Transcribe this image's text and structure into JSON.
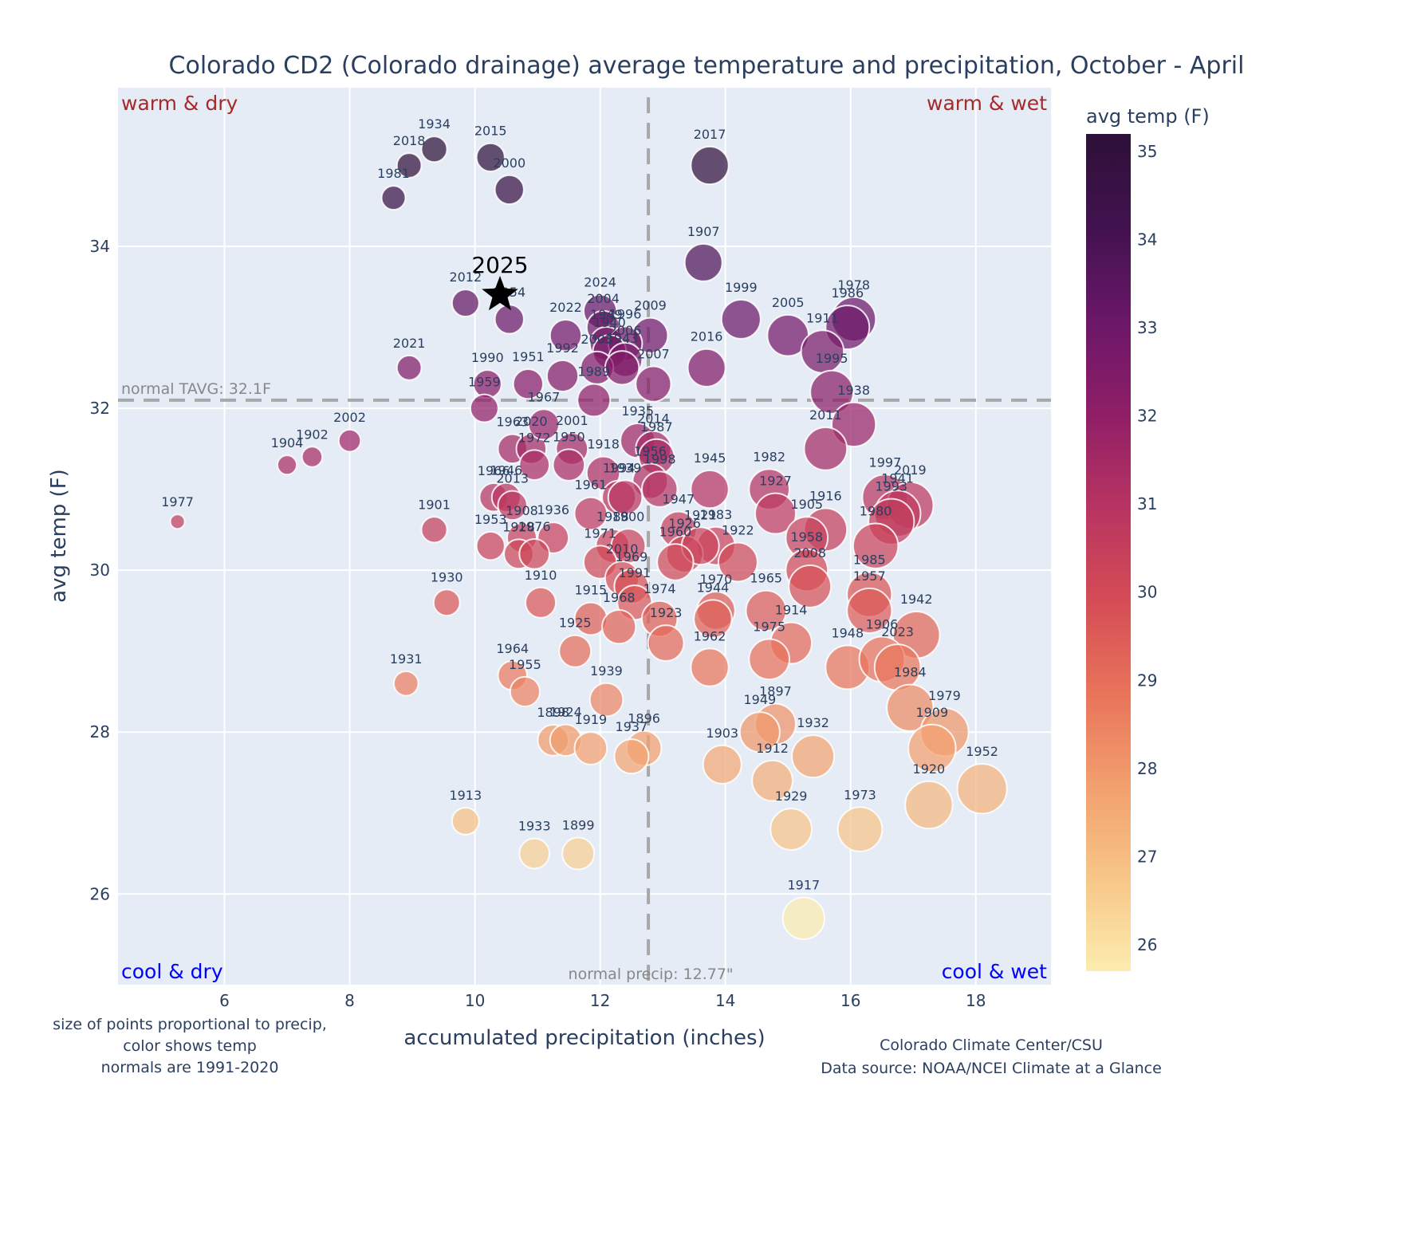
{
  "chart_data": {
    "type": "scatter",
    "title": "Colorado CD2 (Colorado drainage) average temperature and precipitation, October - April",
    "xlabel": "accumulated precipitation (inches)",
    "ylabel": "avg temp (F)",
    "xlim": [
      4.3,
      19.2
    ],
    "ylim": [
      24.88,
      35.96
    ],
    "xticks": [
      6,
      8,
      10,
      12,
      14,
      16,
      18
    ],
    "yticks": [
      26,
      28,
      30,
      32,
      34
    ],
    "grid": true,
    "colorbar": {
      "title": "avg temp (F)",
      "colorscale": "magma_r",
      "range": [
        25.7,
        35.2
      ],
      "ticks": [
        26,
        27,
        28,
        29,
        30,
        31,
        32,
        33,
        34,
        35
      ],
      "stops": [
        "#fcecaf",
        "#f7c688",
        "#f29f6e",
        "#e8735a",
        "#d44c55",
        "#b73462",
        "#8f1e67",
        "#6a1768",
        "#42124f",
        "#2d1038"
      ]
    },
    "marker_size_note": "size proportional to precip",
    "normals": {
      "temp": 32.1,
      "precip": 12.77,
      "temp_label": "normal TAVG: 32.1F",
      "precip_label": "normal precip: 12.77\""
    },
    "quadrant_labels": {
      "top_left": "warm & dry",
      "top_right": "warm & wet",
      "bottom_left": "cool & dry",
      "bottom_right": "cool & wet"
    },
    "highlight": {
      "label": "2025",
      "x": 10.4,
      "y": 33.4,
      "marker": "star"
    },
    "notes": {
      "left": [
        "size of points proportional to precip,",
        "color shows temp",
        "normals are 1991-2020"
      ],
      "right": [
        "Colorado Climate Center/CSU",
        "Data source: NOAA/NCEI Climate at a Glance"
      ]
    },
    "points": [
      {
        "year": "1934",
        "x": 9.35,
        "y": 35.2
      },
      {
        "year": "2015",
        "x": 10.25,
        "y": 35.1
      },
      {
        "year": "2018",
        "x": 8.95,
        "y": 35.0
      },
      {
        "year": "2017",
        "x": 13.75,
        "y": 35.0
      },
      {
        "year": "2000",
        "x": 10.55,
        "y": 34.7
      },
      {
        "year": "1981",
        "x": 8.7,
        "y": 34.6
      },
      {
        "year": "1907",
        "x": 13.65,
        "y": 33.8
      },
      {
        "year": "2012",
        "x": 9.85,
        "y": 33.3
      },
      {
        "year": "1954",
        "x": 10.55,
        "y": 33.1
      },
      {
        "year": "2024",
        "x": 12.0,
        "y": 33.2
      },
      {
        "year": "2004",
        "x": 12.05,
        "y": 33.0
      },
      {
        "year": "2022",
        "x": 11.45,
        "y": 32.9
      },
      {
        "year": "2009",
        "x": 12.8,
        "y": 32.9
      },
      {
        "year": "1999",
        "x": 14.25,
        "y": 33.1
      },
      {
        "year": "2005",
        "x": 15.0,
        "y": 32.9
      },
      {
        "year": "1978",
        "x": 16.05,
        "y": 33.1
      },
      {
        "year": "1986",
        "x": 15.95,
        "y": 33.0
      },
      {
        "year": "1911",
        "x": 15.55,
        "y": 32.7
      },
      {
        "year": "1949",
        "x": 12.1,
        "y": 32.8
      },
      {
        "year": "1996",
        "x": 12.4,
        "y": 32.8
      },
      {
        "year": "1940",
        "x": 12.15,
        "y": 32.7
      },
      {
        "year": "2006",
        "x": 12.4,
        "y": 32.6
      },
      {
        "year": "2003",
        "x": 11.95,
        "y": 32.5
      },
      {
        "year": "1943",
        "x": 12.35,
        "y": 32.5
      },
      {
        "year": "2016",
        "x": 13.7,
        "y": 32.5
      },
      {
        "year": "2021",
        "x": 8.95,
        "y": 32.5
      },
      {
        "year": "1992",
        "x": 11.4,
        "y": 32.4
      },
      {
        "year": "1995",
        "x": 15.7,
        "y": 32.2
      },
      {
        "year": "1990",
        "x": 10.2,
        "y": 32.3
      },
      {
        "year": "1951",
        "x": 10.85,
        "y": 32.3
      },
      {
        "year": "2007",
        "x": 12.85,
        "y": 32.3
      },
      {
        "year": "1959",
        "x": 10.15,
        "y": 32.0
      },
      {
        "year": "1989",
        "x": 11.9,
        "y": 32.1
      },
      {
        "year": "1938",
        "x": 16.05,
        "y": 31.8
      },
      {
        "year": "2011",
        "x": 15.6,
        "y": 31.5
      },
      {
        "year": "2002",
        "x": 8.0,
        "y": 31.6
      },
      {
        "year": "1902",
        "x": 7.4,
        "y": 31.4
      },
      {
        "year": "1904",
        "x": 7.0,
        "y": 31.3
      },
      {
        "year": "1963",
        "x": 10.6,
        "y": 31.5
      },
      {
        "year": "2020",
        "x": 10.9,
        "y": 31.5
      },
      {
        "year": "1967",
        "x": 11.1,
        "y": 31.8
      },
      {
        "year": "1972",
        "x": 10.95,
        "y": 31.3
      },
      {
        "year": "2001",
        "x": 11.55,
        "y": 31.5
      },
      {
        "year": "1950",
        "x": 11.5,
        "y": 31.3
      },
      {
        "year": "1935",
        "x": 12.6,
        "y": 31.6
      },
      {
        "year": "2014",
        "x": 12.85,
        "y": 31.5
      },
      {
        "year": "1987",
        "x": 12.9,
        "y": 31.4
      },
      {
        "year": "1956",
        "x": 12.8,
        "y": 31.1
      },
      {
        "year": "1998",
        "x": 12.95,
        "y": 31.0
      },
      {
        "year": "1945",
        "x": 13.75,
        "y": 31.0
      },
      {
        "year": "1982",
        "x": 14.7,
        "y": 31.0
      },
      {
        "year": "1927",
        "x": 14.8,
        "y": 30.7
      },
      {
        "year": "1997",
        "x": 16.55,
        "y": 30.9
      },
      {
        "year": "2019",
        "x": 16.95,
        "y": 30.8
      },
      {
        "year": "1941",
        "x": 16.75,
        "y": 30.7
      },
      {
        "year": "1993",
        "x": 16.65,
        "y": 30.6
      },
      {
        "year": "1980",
        "x": 16.4,
        "y": 30.3
      },
      {
        "year": "1916",
        "x": 15.6,
        "y": 30.5
      },
      {
        "year": "1905",
        "x": 15.3,
        "y": 30.4
      },
      {
        "year": "1958",
        "x": 15.3,
        "y": 30.0
      },
      {
        "year": "2008",
        "x": 15.35,
        "y": 29.8
      },
      {
        "year": "1985",
        "x": 16.3,
        "y": 29.7
      },
      {
        "year": "1966",
        "x": 10.3,
        "y": 30.9
      },
      {
        "year": "1946",
        "x": 10.5,
        "y": 30.9
      },
      {
        "year": "2013",
        "x": 10.6,
        "y": 30.8
      },
      {
        "year": "1901",
        "x": 9.35,
        "y": 30.5
      },
      {
        "year": "1977",
        "x": 5.25,
        "y": 30.6
      },
      {
        "year": "1953",
        "x": 10.25,
        "y": 30.3
      },
      {
        "year": "1908",
        "x": 10.75,
        "y": 30.4
      },
      {
        "year": "1936",
        "x": 11.25,
        "y": 30.4
      },
      {
        "year": "1928",
        "x": 10.7,
        "y": 30.2
      },
      {
        "year": "1976",
        "x": 10.95,
        "y": 30.2
      },
      {
        "year": "1918",
        "x": 12.05,
        "y": 31.2
      },
      {
        "year": "1994",
        "x": 12.3,
        "y": 30.9
      },
      {
        "year": "1961",
        "x": 11.85,
        "y": 30.7
      },
      {
        "year": "1939b",
        "x": 12.4,
        "y": 30.9
      },
      {
        "year": "1988",
        "x": 12.2,
        "y": 30.3
      },
      {
        "year": "1900",
        "x": 12.45,
        "y": 30.3
      },
      {
        "year": "1971",
        "x": 12.0,
        "y": 30.1
      },
      {
        "year": "2010",
        "x": 12.35,
        "y": 29.9
      },
      {
        "year": "1969",
        "x": 12.5,
        "y": 29.8
      },
      {
        "year": "1947",
        "x": 13.25,
        "y": 30.5
      },
      {
        "year": "1983",
        "x": 13.85,
        "y": 30.3
      },
      {
        "year": "1926",
        "x": 13.35,
        "y": 30.2
      },
      {
        "year": "1921",
        "x": 13.6,
        "y": 30.3
      },
      {
        "year": "1960",
        "x": 13.2,
        "y": 30.1
      },
      {
        "year": "1922",
        "x": 14.2,
        "y": 30.1
      },
      {
        "year": "1930",
        "x": 9.55,
        "y": 29.6
      },
      {
        "year": "1910",
        "x": 11.05,
        "y": 29.6
      },
      {
        "year": "1991",
        "x": 12.55,
        "y": 29.6
      },
      {
        "year": "1974",
        "x": 12.95,
        "y": 29.4
      },
      {
        "year": "1915",
        "x": 11.85,
        "y": 29.4
      },
      {
        "year": "1968",
        "x": 12.3,
        "y": 29.3
      },
      {
        "year": "1923",
        "x": 13.05,
        "y": 29.1
      },
      {
        "year": "1970",
        "x": 13.85,
        "y": 29.5
      },
      {
        "year": "1944",
        "x": 13.8,
        "y": 29.4
      },
      {
        "year": "1965",
        "x": 14.65,
        "y": 29.5
      },
      {
        "year": "1957",
        "x": 16.3,
        "y": 29.5
      },
      {
        "year": "1942",
        "x": 17.05,
        "y": 29.2
      },
      {
        "year": "1914",
        "x": 15.05,
        "y": 29.1
      },
      {
        "year": "1975",
        "x": 14.7,
        "y": 28.9
      },
      {
        "year": "1925",
        "x": 11.6,
        "y": 29.0
      },
      {
        "year": "1962",
        "x": 13.75,
        "y": 28.8
      },
      {
        "year": "1948",
        "x": 15.95,
        "y": 28.8
      },
      {
        "year": "1906",
        "x": 16.5,
        "y": 28.9
      },
      {
        "year": "2023",
        "x": 16.75,
        "y": 28.8
      },
      {
        "year": "1984",
        "x": 16.95,
        "y": 28.3
      },
      {
        "year": "1964",
        "x": 10.6,
        "y": 28.7
      },
      {
        "year": "1955",
        "x": 10.8,
        "y": 28.5
      },
      {
        "year": "1931",
        "x": 8.9,
        "y": 28.6
      },
      {
        "year": "1939",
        "x": 12.1,
        "y": 28.4
      },
      {
        "year": "1979",
        "x": 17.5,
        "y": 28.0
      },
      {
        "year": "1909",
        "x": 17.3,
        "y": 27.8
      },
      {
        "year": "1897",
        "x": 14.8,
        "y": 28.1
      },
      {
        "year": "1949b",
        "x": 14.55,
        "y": 28.0
      },
      {
        "year": "1898",
        "x": 11.25,
        "y": 27.9
      },
      {
        "year": "1924",
        "x": 11.45,
        "y": 27.9
      },
      {
        "year": "1919",
        "x": 11.85,
        "y": 27.8
      },
      {
        "year": "1896",
        "x": 12.7,
        "y": 27.8
      },
      {
        "year": "1937",
        "x": 12.5,
        "y": 27.7
      },
      {
        "year": "1932",
        "x": 15.4,
        "y": 27.7
      },
      {
        "year": "1903",
        "x": 13.95,
        "y": 27.6
      },
      {
        "year": "1912",
        "x": 14.75,
        "y": 27.4
      },
      {
        "year": "1952",
        "x": 18.1,
        "y": 27.3
      },
      {
        "year": "1920",
        "x": 17.25,
        "y": 27.1
      },
      {
        "year": "1913",
        "x": 9.85,
        "y": 26.9
      },
      {
        "year": "1929",
        "x": 15.05,
        "y": 26.8
      },
      {
        "year": "1973",
        "x": 16.15,
        "y": 26.8
      },
      {
        "year": "1933",
        "x": 10.95,
        "y": 26.5
      },
      {
        "year": "1899",
        "x": 11.65,
        "y": 26.5
      },
      {
        "year": "1917",
        "x": 15.25,
        "y": 25.7
      }
    ]
  }
}
